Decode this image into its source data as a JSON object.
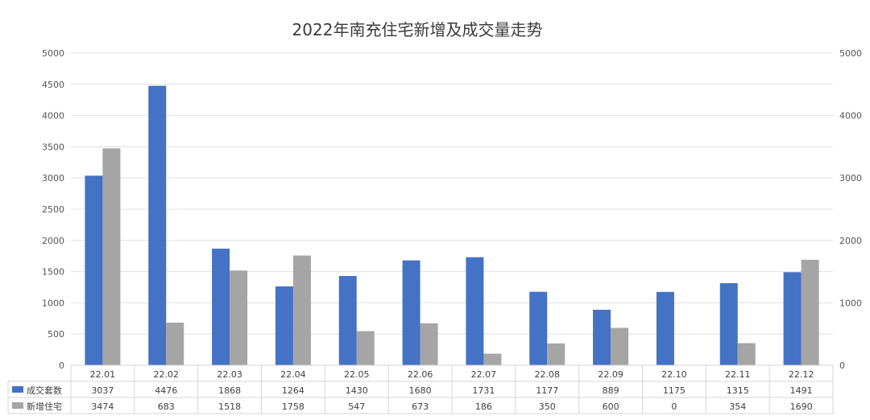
{
  "chart_data": {
    "type": "bar",
    "title": "2022年南充住宅新增及成交量走势",
    "categories": [
      "22.01",
      "22.02",
      "22.03",
      "22.04",
      "22.05",
      "22.06",
      "22.07",
      "22.08",
      "22.09",
      "22.10",
      "22.11",
      "22.12"
    ],
    "series": [
      {
        "name": "成交套数",
        "color": "#4472c4",
        "values": [
          3037,
          4476,
          1868,
          1264,
          1430,
          1680,
          1731,
          1177,
          889,
          1175,
          1315,
          1491
        ]
      },
      {
        "name": "新增住宅",
        "color": "#a5a5a5",
        "values": [
          3474,
          683,
          1518,
          1758,
          547,
          673,
          186,
          350,
          600,
          0,
          354,
          1690
        ]
      }
    ],
    "ylim": [
      0,
      5000
    ],
    "left_ticks": [
      "0",
      "500",
      "1000",
      "1500",
      "2000",
      "2500",
      "3000",
      "3500",
      "4000",
      "4500",
      "5000"
    ],
    "right_ticks": [
      "0",
      "1000",
      "2000",
      "3000",
      "4000",
      "5000"
    ],
    "grid": true,
    "legend": "data-table-left",
    "data_table": true
  }
}
